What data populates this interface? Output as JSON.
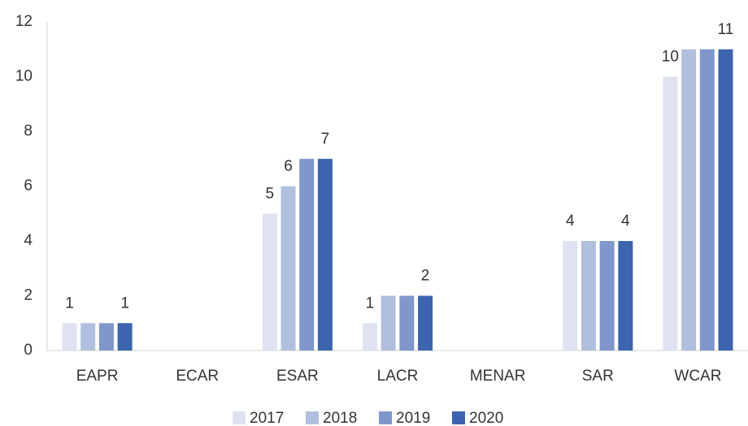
{
  "chart_data": {
    "type": "bar",
    "categories": [
      "EAPR",
      "ECAR",
      "ESAR",
      "LACR",
      "MENAR",
      "SAR",
      "WCAR"
    ],
    "series": [
      {
        "name": "2017",
        "color": "#dfe3f1",
        "values": [
          1,
          0,
          5,
          1,
          0,
          4,
          10
        ],
        "value_labels": [
          "1",
          null,
          "5",
          "1",
          null,
          "4",
          "10"
        ]
      },
      {
        "name": "2018",
        "color": "#b1bfdf",
        "values": [
          1,
          0,
          6,
          2,
          0,
          4,
          11
        ],
        "value_labels": [
          null,
          null,
          "6",
          null,
          null,
          null,
          null
        ]
      },
      {
        "name": "2019",
        "color": "#8097cc",
        "values": [
          1,
          0,
          7,
          2,
          0,
          4,
          11
        ],
        "value_labels": [
          null,
          null,
          null,
          null,
          null,
          null,
          null
        ]
      },
      {
        "name": "2020",
        "color": "#3d64ae",
        "values": [
          1,
          0,
          7,
          2,
          0,
          4,
          11
        ],
        "value_labels": [
          "1",
          null,
          "7",
          "2",
          null,
          "4",
          "11"
        ]
      }
    ],
    "ylim": [
      0,
      12
    ],
    "yticks": [
      0,
      2,
      4,
      6,
      8,
      10,
      12
    ],
    "grid": false,
    "legend": "bottom"
  }
}
